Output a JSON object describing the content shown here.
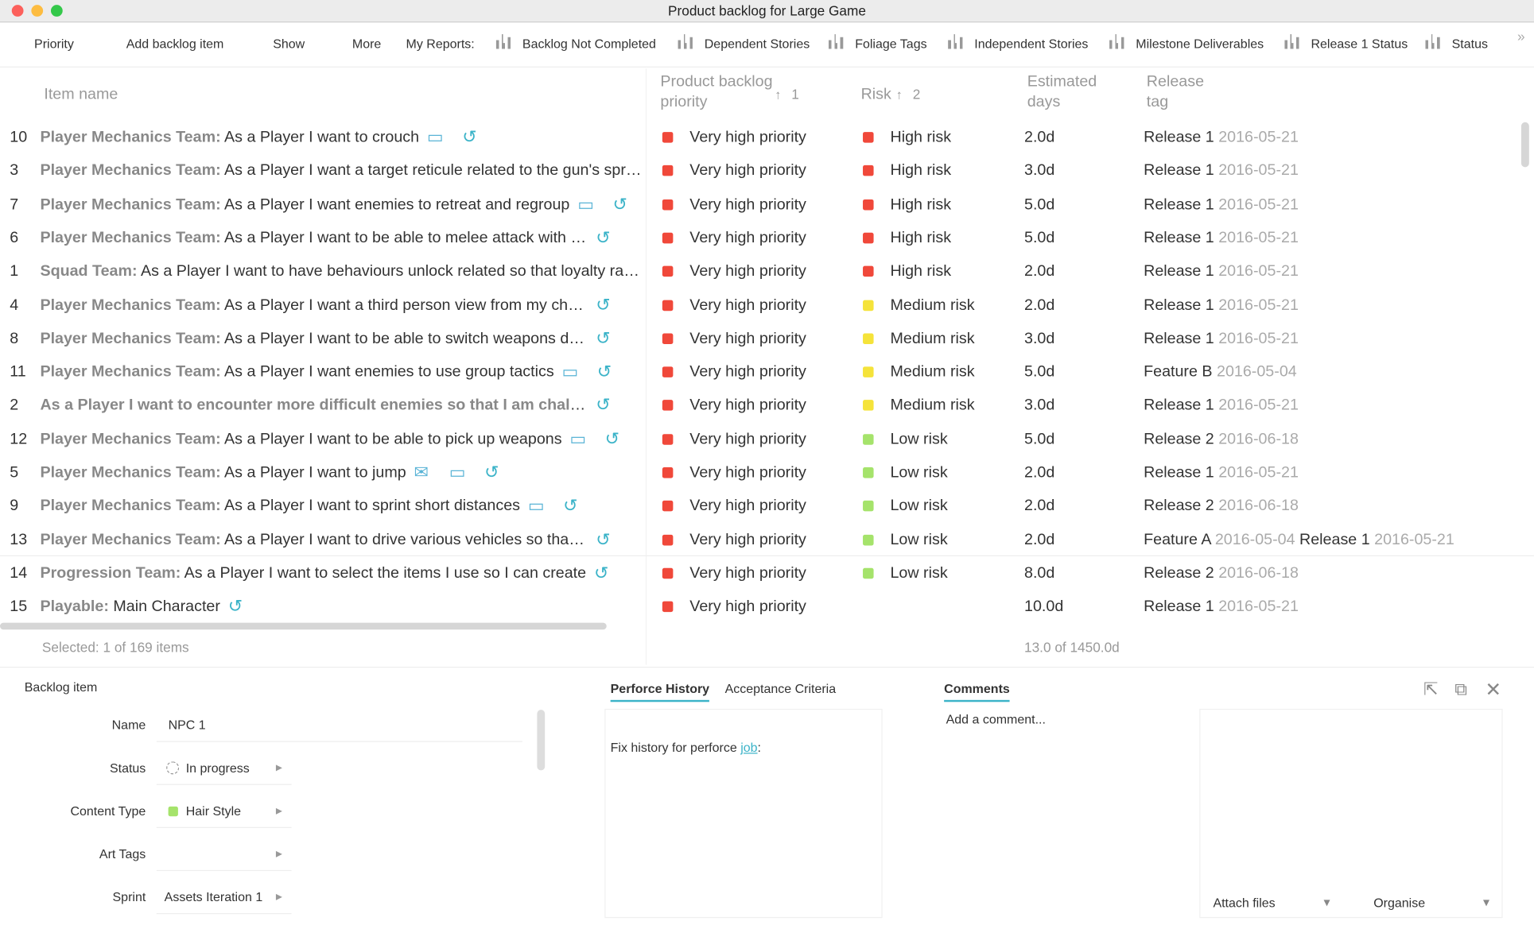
{
  "window": {
    "title": "Product backlog for Large Game"
  },
  "toolbar": {
    "items": [
      "Priority",
      "Add backlog item",
      "Show",
      "More"
    ],
    "reports_label": "My Reports:",
    "reports": [
      "Backlog Not Completed",
      "Dependent Stories",
      "Foliage Tags",
      "Independent Stories",
      "Milestone Deliverables",
      "Release 1 Status",
      "Status"
    ]
  },
  "table": {
    "columns": {
      "item": "Item name",
      "priority": "Product backlog priority",
      "priority_sort": "1",
      "risk": "Risk",
      "risk_sort": "2",
      "days": "Estimated days",
      "release": "Release tag"
    },
    "rows": [
      {
        "id": "10",
        "team": "Player Mechanics Team:",
        "text": "As a Player I want to crouch",
        "priority": "Very high priority",
        "risk": "High risk",
        "risk_color": "#f0483a",
        "days": "2.0d",
        "releases": [
          {
            "tag": "Release 1",
            "date": "2016-05-21"
          }
        ],
        "icons": [
          "comment",
          "link"
        ]
      },
      {
        "id": "3",
        "team": "Player Mechanics Team:",
        "text": "As a Player I want a target reticule related to the gun's spread",
        "priority": "Very high priority",
        "risk": "High risk",
        "risk_color": "#f0483a",
        "days": "3.0d",
        "releases": [
          {
            "tag": "Release 1",
            "date": "2016-05-21"
          }
        ],
        "icons": []
      },
      {
        "id": "7",
        "team": "Player Mechanics Team:",
        "text": "As a Player I want enemies to retreat and regroup",
        "priority": "Very high priority",
        "risk": "High risk",
        "risk_color": "#f0483a",
        "days": "5.0d",
        "releases": [
          {
            "tag": "Release 1",
            "date": "2016-05-21"
          }
        ],
        "icons": [
          "comment",
          "link"
        ]
      },
      {
        "id": "6",
        "team": "Player Mechanics Team:",
        "text": "As a Player I want to be able to melee attack with my",
        "priority": "Very high priority",
        "risk": "High risk",
        "risk_color": "#f0483a",
        "days": "5.0d",
        "releases": [
          {
            "tag": "Release 1",
            "date": "2016-05-21"
          }
        ],
        "icons": [
          "link"
        ]
      },
      {
        "id": "1",
        "team": "Squad Team:",
        "text": "As a Player I want to have behaviours unlock related so that loyalty rating",
        "priority": "Very high priority",
        "risk": "High risk",
        "risk_color": "#f0483a",
        "days": "2.0d",
        "releases": [
          {
            "tag": "Release 1",
            "date": "2016-05-21"
          }
        ],
        "icons": []
      },
      {
        "id": "4",
        "team": "Player Mechanics Team:",
        "text": "As a Player I want a third person view from my character",
        "priority": "Very high priority",
        "risk": "Medium risk",
        "risk_color": "#f5e33a",
        "days": "2.0d",
        "releases": [
          {
            "tag": "Release 1",
            "date": "2016-05-21"
          }
        ],
        "icons": [
          "link"
        ]
      },
      {
        "id": "8",
        "team": "Player Mechanics Team:",
        "text": "As a Player I want to be able to switch weapons during",
        "priority": "Very high priority",
        "risk": "Medium risk",
        "risk_color": "#f5e33a",
        "days": "3.0d",
        "releases": [
          {
            "tag": "Release 1",
            "date": "2016-05-21"
          }
        ],
        "icons": [
          "link"
        ]
      },
      {
        "id": "11",
        "team": "Player Mechanics Team:",
        "text": "As a Player I want enemies to use group tactics",
        "priority": "Very high priority",
        "risk": "Medium risk",
        "risk_color": "#f5e33a",
        "days": "5.0d",
        "releases": [
          {
            "tag": "Feature B",
            "date": "2016-05-04"
          }
        ],
        "icons": [
          "comment",
          "link"
        ]
      },
      {
        "id": "2",
        "title": "As a Player I want to encounter more difficult enemies so that I am challenged",
        "priority": "Very high priority",
        "risk": "Medium risk",
        "risk_color": "#f5e33a",
        "days": "3.0d",
        "releases": [
          {
            "tag": "Release 1",
            "date": "2016-05-21"
          }
        ],
        "icons": [
          "link"
        ]
      },
      {
        "id": "12",
        "team": "Player Mechanics Team:",
        "text": "As a Player I want to be able to pick up weapons",
        "priority": "Very high priority",
        "risk": "Low risk",
        "risk_color": "#a5e36b",
        "days": "5.0d",
        "releases": [
          {
            "tag": "Release 2",
            "date": "2016-06-18"
          }
        ],
        "icons": [
          "comment",
          "link"
        ]
      },
      {
        "id": "5",
        "team": "Player Mechanics Team:",
        "text": "As a Player I want to jump",
        "priority": "Very high priority",
        "risk": "Low risk",
        "risk_color": "#a5e36b",
        "days": "2.0d",
        "releases": [
          {
            "tag": "Release 1",
            "date": "2016-05-21"
          }
        ],
        "icons": [
          "mail",
          "comment",
          "link"
        ]
      },
      {
        "id": "9",
        "team": "Player Mechanics Team:",
        "text": "As a Player I want to sprint short distances",
        "priority": "Very high priority",
        "risk": "Low risk",
        "risk_color": "#a5e36b",
        "days": "2.0d",
        "releases": [
          {
            "tag": "Release 2",
            "date": "2016-06-18"
          }
        ],
        "icons": [
          "comment",
          "link"
        ]
      },
      {
        "id": "13",
        "team": "Player Mechanics Team:",
        "text": "As a Player I want to drive various vehicles so that I can",
        "priority": "Very high priority",
        "risk": "Low risk",
        "risk_color": "#a5e36b",
        "days": "2.0d",
        "releases": [
          {
            "tag": "Feature A",
            "date": "2016-05-04"
          },
          {
            "tag": "Release 1",
            "date": "2016-05-21"
          }
        ],
        "icons": [
          "link"
        ]
      },
      {
        "id": "14",
        "team": "Progression Team:",
        "text": "As a Player I want to select the items I use so I can create",
        "priority": "Very high priority",
        "risk": "Low risk",
        "risk_color": "#a5e36b",
        "days": "8.0d",
        "releases": [
          {
            "tag": "Release 2",
            "date": "2016-06-18"
          }
        ],
        "icons": [
          "link"
        ]
      },
      {
        "id": "15",
        "team": "Playable:",
        "text": "Main Character",
        "priority": "Very high priority",
        "days": "10.0d",
        "releases": [
          {
            "tag": "Release 1",
            "date": "2016-05-21"
          }
        ],
        "icons": [
          "link"
        ]
      }
    ],
    "priority_color": "#f0483a",
    "footer": {
      "selected": "Selected: 1 of 169 items",
      "days": "13.0 of 1450.0d"
    }
  },
  "detail": {
    "title": "Backlog item",
    "fields": [
      {
        "label": "Name",
        "value": "NPC 1"
      },
      {
        "label": "Status",
        "value": "In progress"
      },
      {
        "label": "Content Type",
        "value": "Hair Style"
      },
      {
        "label": "Art Tags"
      },
      {
        "label": "Sprint",
        "value": "Assets Iteration 1"
      }
    ],
    "tabs": [
      "Perforce History",
      "Acceptance Criteria"
    ],
    "history": {
      "text": "Fix history for perforce",
      "link": "job",
      "tail": ":"
    },
    "comments": {
      "tab": "Comments",
      "placeholder": "Add a comment...",
      "attach": "Attach files",
      "organise": "Organise"
    }
  }
}
